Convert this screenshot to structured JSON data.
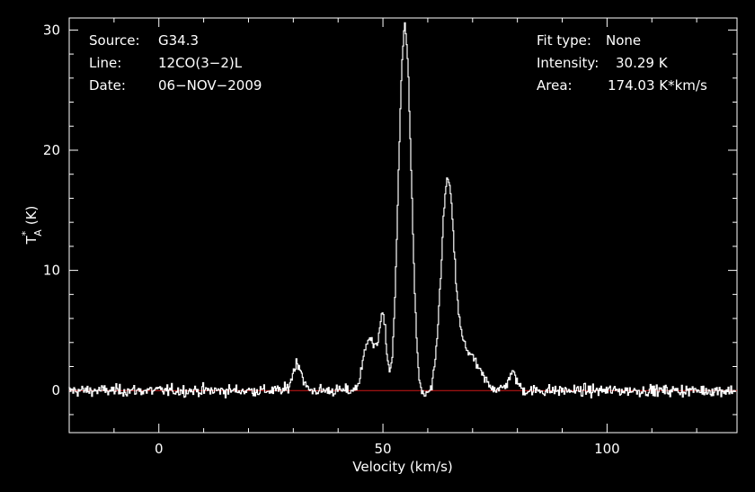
{
  "chart_data": {
    "type": "line",
    "xlabel": "Velocity (km/s)",
    "ylabel_main": "T",
    "ylabel_sup": "*",
    "ylabel_sub": "A",
    "ylabel_unit": "(K)",
    "xlim": [
      -20,
      129
    ],
    "ylim": [
      -3.5,
      31
    ],
    "x_ticks": [
      0,
      50,
      100
    ],
    "y_ticks": [
      0,
      10,
      20,
      30
    ],
    "grid": false,
    "colors": {
      "background": "#000000",
      "axes": "#ffffff",
      "spectrum": "#ffffff",
      "baseline": "#d01818"
    },
    "baseline": 0,
    "info_left": [
      {
        "key": "Source:",
        "value": "G34.3"
      },
      {
        "key": "Line:",
        "value": "12CO(3−2)L"
      },
      {
        "key": "Date:",
        "value": "06−NOV−2009"
      }
    ],
    "info_right": [
      {
        "key": "Fit type:",
        "value": "None"
      },
      {
        "key": "Intensity:",
        "value": "30.29 K"
      },
      {
        "key": "Area:",
        "value": "174.03 K*km/s"
      }
    ],
    "spectrum_features": [
      {
        "velocity": 31,
        "peak": 2.3,
        "width": 1.0
      },
      {
        "velocity": 47,
        "peak": 4.5,
        "width": 1.2
      },
      {
        "velocity": 50,
        "peak": 6.0,
        "width": 0.9
      },
      {
        "velocity": 55,
        "peak": 30.29,
        "width": 1.4
      },
      {
        "velocity": 64.5,
        "peak": 15.8,
        "width": 1.4
      },
      {
        "velocity": 68,
        "peak": 3.5,
        "width": 3.0
      },
      {
        "velocity": 79,
        "peak": 1.4,
        "width": 1.0
      }
    ],
    "noise_rms": 0.4
  }
}
